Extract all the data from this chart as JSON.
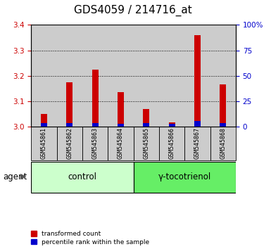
{
  "title": "GDS4059 / 214716_at",
  "samples": [
    "GSM545861",
    "GSM545862",
    "GSM545863",
    "GSM545864",
    "GSM545865",
    "GSM545866",
    "GSM545867",
    "GSM545868"
  ],
  "red_values": [
    3.05,
    3.175,
    3.225,
    3.135,
    3.07,
    3.015,
    3.36,
    3.165
  ],
  "blue_values": [
    0.012,
    0.012,
    0.012,
    0.01,
    0.012,
    0.01,
    0.022,
    0.012
  ],
  "base": 3.0,
  "ylim": [
    3.0,
    3.4
  ],
  "yticks": [
    3.0,
    3.1,
    3.2,
    3.3,
    3.4
  ],
  "y2lim": [
    0,
    100
  ],
  "y2ticks": [
    0,
    25,
    50,
    75,
    100
  ],
  "y2ticklabels": [
    "0",
    "25",
    "50",
    "75",
    "100%"
  ],
  "control_samples": 4,
  "control_label": "control",
  "treatment_label": "γ-tocotrienol",
  "agent_label": "agent",
  "legend_red": "transformed count",
  "legend_blue": "percentile rank within the sample",
  "control_color": "#ccffcc",
  "treatment_color": "#66ee66",
  "bar_bg_color": "#cccccc",
  "red_color": "#cc0000",
  "blue_color": "#0000cc",
  "title_fontsize": 11,
  "tick_fontsize": 7.5,
  "label_fontsize": 8.5,
  "sample_fontsize": 6.0
}
